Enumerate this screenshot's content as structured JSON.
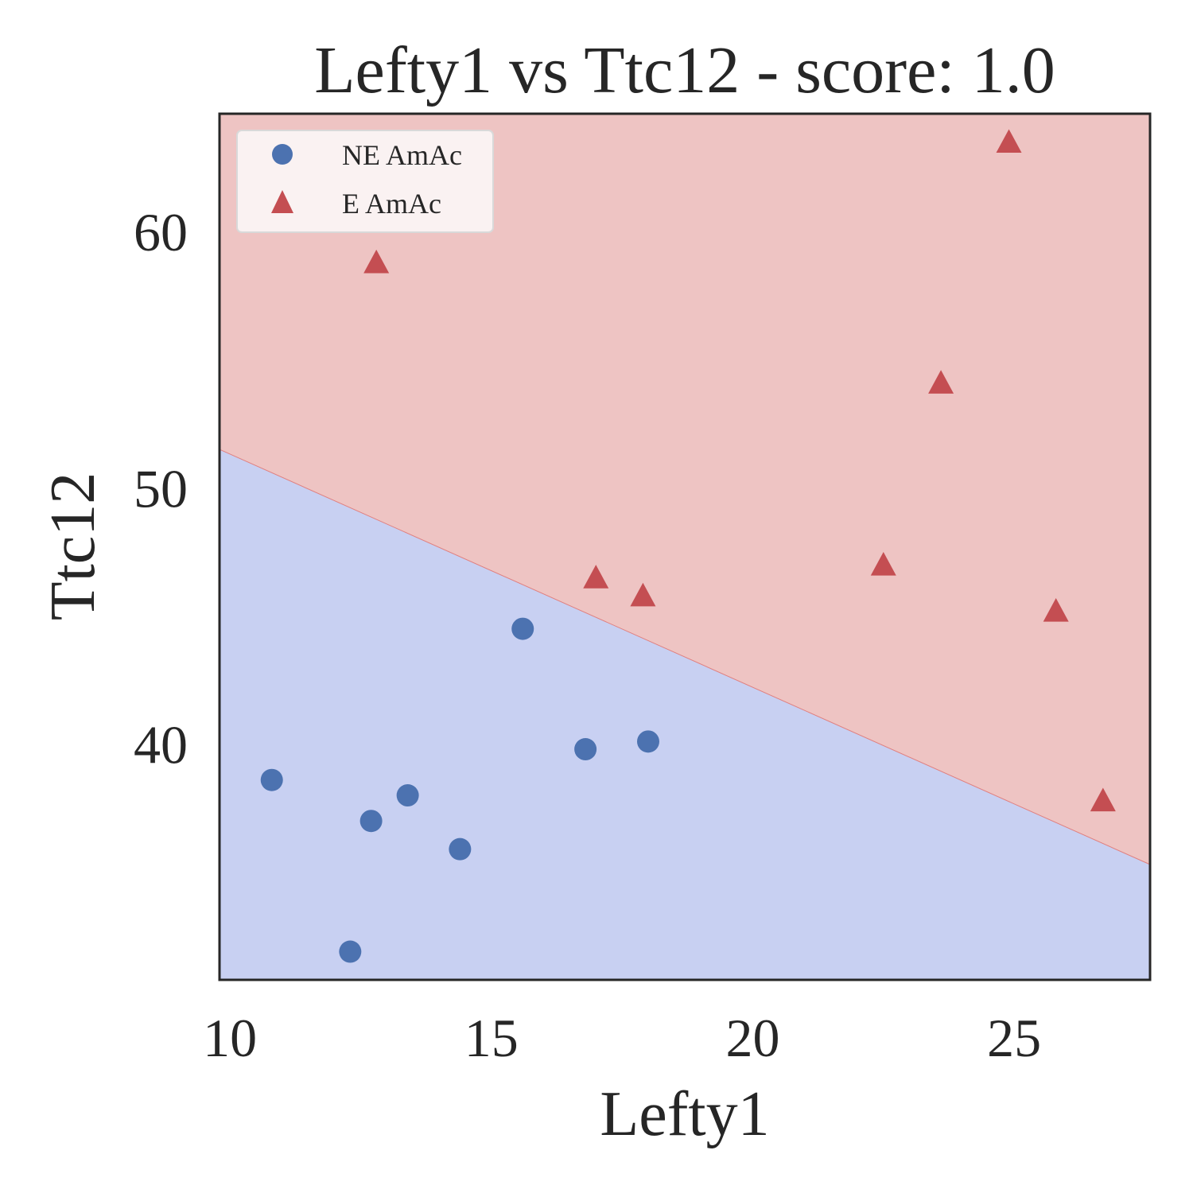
{
  "chart_data": {
    "type": "scatter",
    "title": "Lefty1 vs Ttc12 - score: 1.0",
    "xlabel": "Lefty1",
    "ylabel": "Ttc12",
    "xlim": [
      9.8,
      27.6
    ],
    "ylim": [
      30.8,
      64.6
    ],
    "xticks": [
      10,
      15,
      20,
      25
    ],
    "yticks": [
      40,
      50,
      60
    ],
    "grid": false,
    "legend_position": "top-left",
    "decision_boundary": {
      "points": [
        [
          9.8,
          51.5
        ],
        [
          27.6,
          35.3
        ]
      ],
      "region_below_color": "#c8d0f2",
      "region_above_color": "#eec4c3",
      "line_color": "#e08080"
    },
    "series": [
      {
        "name": "NE AmAc",
        "marker": "circle",
        "color": "#4c72b0",
        "points": [
          [
            10.8,
            38.6
          ],
          [
            12.3,
            31.9
          ],
          [
            12.7,
            37.0
          ],
          [
            13.4,
            38.0
          ],
          [
            14.4,
            35.9
          ],
          [
            15.6,
            44.5
          ],
          [
            16.8,
            39.8
          ],
          [
            18.0,
            40.1
          ]
        ]
      },
      {
        "name": "E AmAc",
        "marker": "triangle",
        "color": "#c44e52",
        "points": [
          [
            12.8,
            58.8
          ],
          [
            17.0,
            46.5
          ],
          [
            17.9,
            45.8
          ],
          [
            22.5,
            47.0
          ],
          [
            23.6,
            54.1
          ],
          [
            24.9,
            63.5
          ],
          [
            25.8,
            45.2
          ],
          [
            26.7,
            37.8
          ]
        ]
      }
    ]
  }
}
